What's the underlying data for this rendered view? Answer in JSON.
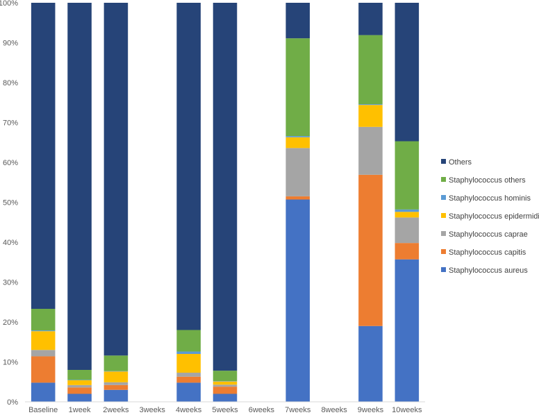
{
  "chart_data": {
    "type": "bar",
    "stacked": true,
    "normalized_percent": true,
    "title": "",
    "xlabel": "",
    "ylabel": "",
    "ylim": [
      0,
      100
    ],
    "yticks": [
      "0%",
      "10%",
      "20%",
      "30%",
      "40%",
      "50%",
      "60%",
      "70%",
      "80%",
      "90%",
      "100%"
    ],
    "grid": false,
    "legend_position": "right",
    "categories": [
      "Baseline",
      "1week",
      "2weeks",
      "3weeks",
      "4weeks",
      "5weeks",
      "6weeks",
      "7weeks",
      "8weeks",
      "9weeks",
      "10weeks"
    ],
    "series": [
      {
        "name": "Staphylococcus aureus",
        "color": "#4472C4",
        "values": [
          4.8,
          2.0,
          3.0,
          0,
          4.8,
          2.0,
          0,
          50.7,
          0,
          19.0,
          35.7
        ]
      },
      {
        "name": "Staphylococcus capitis",
        "color": "#ED7D31",
        "values": [
          6.6,
          1.6,
          1.2,
          0,
          1.5,
          1.8,
          0,
          0.8,
          0,
          37.9,
          4.1
        ]
      },
      {
        "name": "Staphylococcus caprae",
        "color": "#A5A5A5",
        "values": [
          1.6,
          0.6,
          0.7,
          0,
          1.0,
          0.5,
          0,
          12.1,
          0,
          12.0,
          6.4
        ]
      },
      {
        "name": "Staphylococcus epidermidis",
        "color": "#FFC000",
        "values": [
          4.7,
          1.2,
          2.7,
          0,
          4.7,
          0.8,
          0,
          2.7,
          0,
          5.5,
          1.4
        ]
      },
      {
        "name": "Staphylococcus hominis",
        "color": "#5B9BD5",
        "values": [
          0.2,
          0.1,
          0.1,
          0,
          0.6,
          0.1,
          0,
          0.3,
          0,
          0.2,
          0.6
        ]
      },
      {
        "name": "Staphylococcus others",
        "color": "#70AD47",
        "values": [
          5.4,
          2.5,
          3.9,
          0,
          5.4,
          2.6,
          0,
          24.5,
          0,
          17.3,
          17.1
        ]
      },
      {
        "name": "Others",
        "color": "#264478",
        "values": [
          76.7,
          92.0,
          88.4,
          0,
          82.0,
          92.2,
          0,
          8.9,
          0,
          8.1,
          34.7
        ]
      }
    ]
  }
}
